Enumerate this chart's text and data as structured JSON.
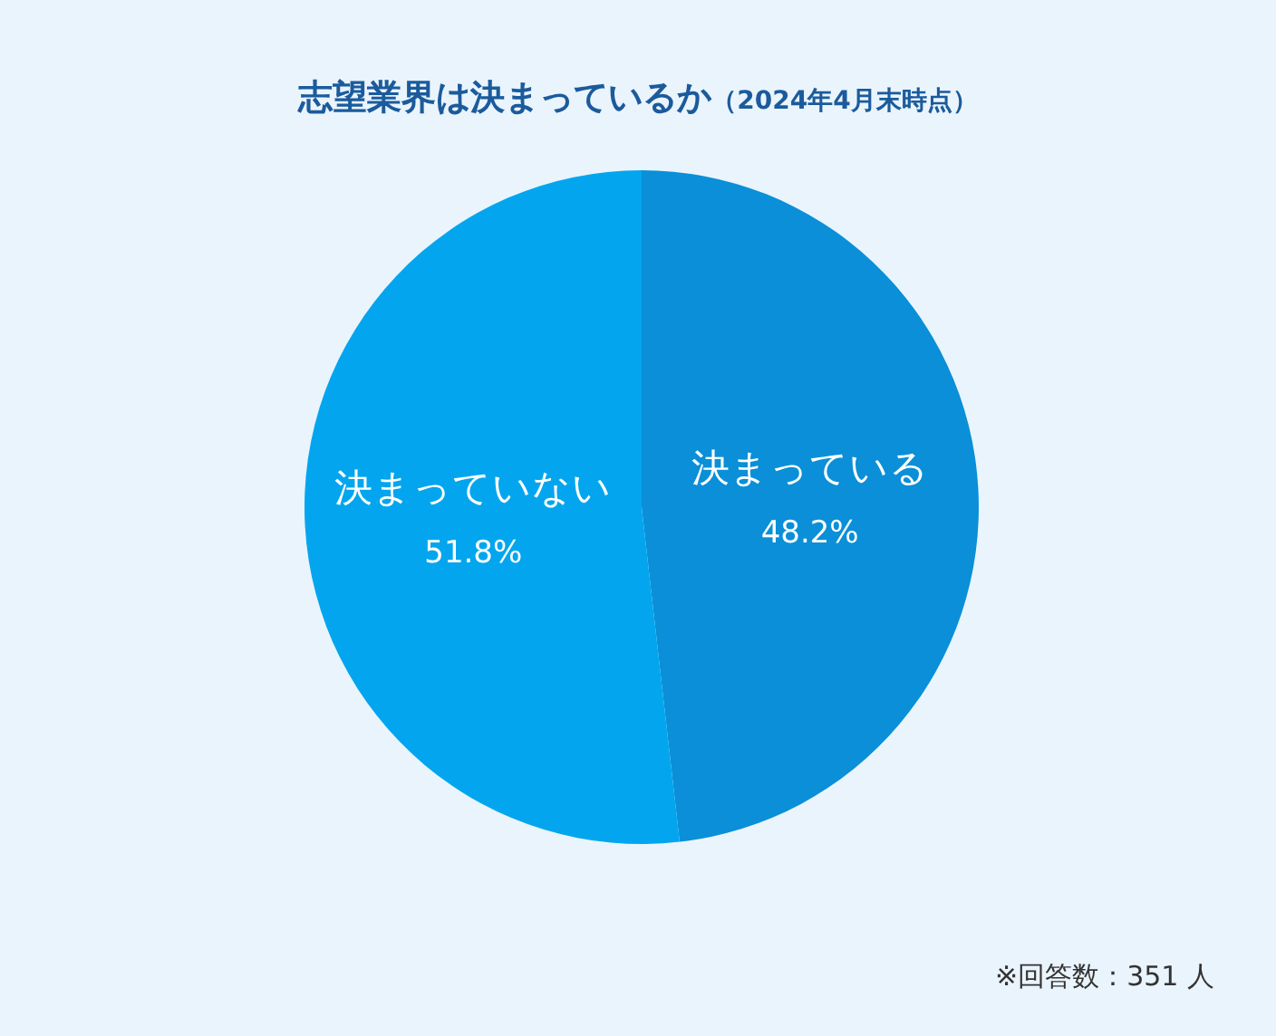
{
  "chart_data": {
    "type": "pie",
    "title": "志望業界は決まっているか",
    "subtitle": "（2024年4月末時点）",
    "categories": [
      "決まっている",
      "決まっていない"
    ],
    "values": [
      48.2,
      51.8
    ],
    "value_labels": [
      "48.2%",
      "51.8%"
    ],
    "colors": [
      "#0a8fd8",
      "#03a6ee"
    ],
    "annotations": [
      "※回答数：351 人"
    ]
  }
}
